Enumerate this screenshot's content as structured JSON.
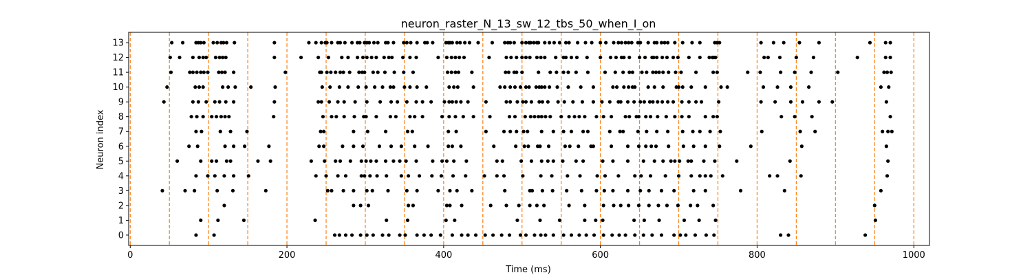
{
  "chart_data": {
    "type": "scatter",
    "title": "neuron_raster_N_13_sw_12_tbs_50_when_I_on",
    "xlabel": "Time (ms)",
    "ylabel": "Neuron index",
    "xlim": [
      -2,
      1020
    ],
    "ylim": [
      -0.7,
      13.7
    ],
    "xticks": [
      0,
      200,
      400,
      600,
      800,
      1000
    ],
    "yticks": [
      0,
      1,
      2,
      3,
      4,
      5,
      6,
      7,
      8,
      9,
      10,
      11,
      12,
      13
    ],
    "grid": false,
    "marker_color": "#000000",
    "vline_color": "#ff7f0e",
    "vlines": [
      0,
      50,
      100,
      150,
      200,
      250,
      300,
      350,
      400,
      450,
      500,
      550,
      600,
      650,
      700,
      750,
      800,
      850,
      900,
      950,
      1000
    ],
    "spikes": [
      {
        "neuron": 13,
        "times": [
          53,
          67,
          84,
          87,
          90,
          94,
          106,
          111,
          116,
          119,
          123,
          133,
          184,
          228,
          237,
          244,
          249,
          251,
          257,
          265,
          268,
          274,
          283,
          290,
          293,
          299,
          302,
          305,
          311,
          316,
          326,
          329,
          336,
          349,
          353,
          358,
          366,
          376,
          379,
          386,
          403,
          406,
          408,
          411,
          417,
          421,
          427,
          433,
          444,
          462,
          478,
          482,
          485,
          490,
          500,
          505,
          509,
          511,
          515,
          519,
          521,
          529,
          535,
          541,
          548,
          556,
          560,
          571,
          581,
          589,
          600,
          607,
          617,
          623,
          627,
          632,
          636,
          640,
          648,
          651,
          661,
          669,
          672,
          678,
          682,
          686,
          695,
          705,
          717,
          727,
          746,
          749,
          752,
          805,
          821,
          834,
          854,
          879,
          944,
          964,
          970
        ]
      },
      {
        "neuron": 12,
        "times": [
          51,
          63,
          80,
          88,
          93,
          97,
          109,
          114,
          118,
          122,
          184,
          218,
          240,
          253,
          270,
          278,
          290,
          297,
          302,
          308,
          314,
          324,
          330,
          334,
          348,
          357,
          365,
          393,
          404,
          410,
          415,
          420,
          426,
          458,
          480,
          486,
          493,
          500,
          505,
          510,
          519,
          524,
          529,
          543,
          553,
          556,
          563,
          570,
          583,
          600,
          613,
          620,
          627,
          630,
          637,
          650,
          657,
          666,
          668,
          672,
          679,
          685,
          693,
          699,
          713,
          727,
          739,
          743,
          745,
          747,
          809,
          814,
          829,
          850,
          872,
          928,
          964,
          970
        ]
      },
      {
        "neuron": 11,
        "times": [
          52,
          76,
          80,
          85,
          90,
          94,
          99,
          113,
          117,
          121,
          132,
          198,
          242,
          244,
          251,
          256,
          262,
          268,
          272,
          280,
          292,
          296,
          299,
          310,
          316,
          325,
          337,
          349,
          361,
          405,
          410,
          415,
          419,
          436,
          479,
          483,
          490,
          493,
          500,
          521,
          536,
          544,
          553,
          559,
          569,
          584,
          606,
          619,
          629,
          637,
          641,
          653,
          659,
          667,
          671,
          675,
          680,
          687,
          696,
          703,
          722,
          744,
          749,
          788,
          804,
          830,
          848,
          869,
          903,
          962,
          966,
          971
        ]
      },
      {
        "neuron": 10,
        "times": [
          47,
          83,
          88,
          93,
          118,
          125,
          134,
          154,
          185,
          245,
          255,
          267,
          278,
          291,
          301,
          312,
          322,
          332,
          336,
          350,
          357,
          366,
          378,
          407,
          413,
          418,
          438,
          472,
          478,
          485,
          491,
          498,
          505,
          509,
          518,
          522,
          525,
          529,
          535,
          545,
          559,
          575,
          591,
          616,
          621,
          630,
          636,
          641,
          644,
          661,
          669,
          680,
          697,
          700,
          705,
          716,
          734,
          754,
          762,
          808,
          826,
          843,
          866,
          958,
          968
        ]
      },
      {
        "neuron": 9,
        "times": [
          43,
          80,
          87,
          97,
          108,
          114,
          122,
          132,
          184,
          240,
          244,
          254,
          265,
          273,
          287,
          302,
          319,
          333,
          341,
          353,
          365,
          373,
          384,
          401,
          407,
          411,
          416,
          422,
          431,
          454,
          480,
          485,
          494,
          501,
          505,
          512,
          522,
          526,
          533,
          546,
          554,
          565,
          577,
          591,
          602,
          612,
          623,
          626,
          635,
          643,
          651,
          656,
          663,
          667,
          673,
          679,
          686,
          693,
          704,
          713,
          722,
          729,
          751,
          805,
          823,
          843,
          858,
          879,
          896,
          965
        ]
      },
      {
        "neuron": 8,
        "times": [
          78,
          85,
          93,
          104,
          110,
          116,
          121,
          126,
          183,
          246,
          257,
          263,
          273,
          286,
          298,
          301,
          314,
          332,
          339,
          357,
          363,
          373,
          398,
          407,
          415,
          425,
          438,
          459,
          484,
          491,
          504,
          511,
          516,
          521,
          525,
          530,
          536,
          550,
          560,
          567,
          573,
          580,
          595,
          604,
          614,
          632,
          637,
          646,
          649,
          658,
          664,
          673,
          684,
          695,
          704,
          713,
          734,
          744,
          749,
          831,
          848,
          870,
          970
        ]
      },
      {
        "neuron": 7,
        "times": [
          84,
          91,
          115,
          128,
          149,
          243,
          247,
          285,
          303,
          326,
          354,
          360,
          406,
          416,
          454,
          477,
          485,
          493,
          502,
          507,
          525,
          540,
          553,
          563,
          578,
          584,
          612,
          625,
          629,
          648,
          659,
          672,
          686,
          705,
          718,
          727,
          740,
          753,
          806,
          855,
          874,
          960,
          967,
          972
        ]
      },
      {
        "neuron": 6,
        "times": [
          75,
          86,
          121,
          132,
          146,
          177,
          241,
          247,
          271,
          285,
          297,
          318,
          333,
          346,
          363,
          380,
          406,
          411,
          422,
          464,
          492,
          503,
          508,
          520,
          523,
          534,
          555,
          561,
          572,
          588,
          591,
          614,
          635,
          649,
          658,
          665,
          671,
          687,
          706,
          719,
          734,
          752,
          792,
          857,
          965
        ]
      },
      {
        "neuron": 5,
        "times": [
          60,
          90,
          104,
          110,
          123,
          128,
          163,
          179,
          231,
          248,
          262,
          268,
          281,
          295,
          301,
          307,
          314,
          326,
          336,
          344,
          352,
          365,
          386,
          398,
          404,
          413,
          429,
          468,
          475,
          499,
          512,
          525,
          533,
          540,
          552,
          569,
          578,
          603,
          616,
          635,
          655,
          669,
          680,
          690,
          695,
          701,
          712,
          716,
          732,
          746,
          774,
          842,
          967
        ]
      },
      {
        "neuron": 4,
        "times": [
          84,
          99,
          108,
          120,
          132,
          151,
          237,
          250,
          265,
          275,
          295,
          299,
          306,
          315,
          327,
          346,
          355,
          369,
          385,
          397,
          412,
          428,
          452,
          468,
          477,
          501,
          524,
          538,
          558,
          574,
          596,
          606,
          623,
          644,
          652,
          664,
          683,
          700,
          716,
          727,
          734,
          741,
          756,
          816,
          826,
          856,
          966
        ]
      },
      {
        "neuron": 3,
        "times": [
          41,
          70,
          82,
          111,
          131,
          173,
          252,
          257,
          272,
          285,
          302,
          309,
          329,
          353,
          366,
          393,
          408,
          417,
          436,
          478,
          510,
          513,
          526,
          539,
          557,
          576,
          595,
          605,
          616,
          635,
          651,
          662,
          678,
          694,
          719,
          734,
          779,
          835,
          958
        ]
      },
      {
        "neuron": 2,
        "times": [
          120,
          285,
          294,
          304,
          355,
          361,
          404,
          408,
          423,
          460,
          480,
          496,
          510,
          519,
          528,
          560,
          580,
          604,
          617,
          626,
          636,
          649,
          662,
          674,
          685,
          699,
          715,
          724,
          744,
          950
        ]
      },
      {
        "neuron": 1,
        "times": [
          90,
          112,
          145,
          236,
          327,
          354,
          403,
          414,
          494,
          523,
          548,
          580,
          594,
          603,
          643,
          656,
          675,
          707,
          726,
          747,
          951
        ]
      },
      {
        "neuron": 0,
        "times": [
          84,
          107,
          261,
          267,
          275,
          283,
          294,
          302,
          310,
          322,
          330,
          344,
          351,
          366,
          375,
          384,
          396,
          411,
          423,
          431,
          441,
          453,
          463,
          474,
          484,
          498,
          505,
          516,
          524,
          530,
          540,
          553,
          563,
          573,
          582,
          592,
          604,
          615,
          624,
          632,
          644,
          655,
          666,
          678,
          694,
          702,
          709,
          721,
          735,
          745,
          830,
          840,
          938
        ]
      }
    ]
  }
}
